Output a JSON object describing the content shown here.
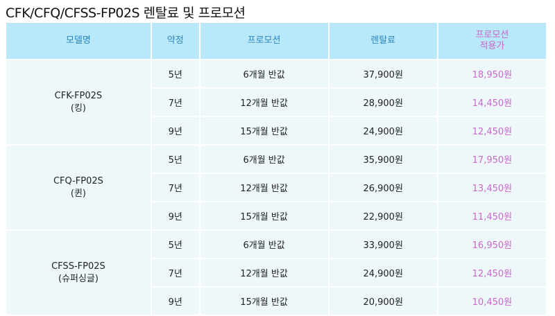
{
  "title": "CFK/CFQ/CFSS-FP02S 렌탈료 및 프로모션",
  "headers": {
    "model": "모델명",
    "contract": "약정",
    "promotion": "프로모션",
    "rental": "렌탈료",
    "promo_price_1": "프로모션",
    "promo_price_2": "적용가"
  },
  "colors": {
    "header_bg": "#b9e8fb",
    "header_text": "#2a86c0",
    "promo_text": "#cc66cc",
    "body_bg": "#eef8fb"
  },
  "groups": [
    {
      "model": "CFK-FP02S",
      "sub": "(킹)",
      "rows": [
        {
          "contract": "5년",
          "promotion": "6개월 반값",
          "rental": "37,900원",
          "promo_price": "18,950원"
        },
        {
          "contract": "7년",
          "promotion": "12개월 반값",
          "rental": "28,900원",
          "promo_price": "14,450원"
        },
        {
          "contract": "9년",
          "promotion": "15개월 반값",
          "rental": "24,900원",
          "promo_price": "12,450원"
        }
      ]
    },
    {
      "model": "CFQ-FP02S",
      "sub": "(퀸)",
      "rows": [
        {
          "contract": "5년",
          "promotion": "6개월 반값",
          "rental": "35,900원",
          "promo_price": "17,950원"
        },
        {
          "contract": "7년",
          "promotion": "12개월 반값",
          "rental": "26,900원",
          "promo_price": "13,450원"
        },
        {
          "contract": "9년",
          "promotion": "15개월 반값",
          "rental": "22,900원",
          "promo_price": "11,450원"
        }
      ]
    },
    {
      "model": "CFSS-FP02S",
      "sub": "(슈퍼싱글)",
      "rows": [
        {
          "contract": "5년",
          "promotion": "6개월 반값",
          "rental": "33,900원",
          "promo_price": "16,950원"
        },
        {
          "contract": "7년",
          "promotion": "12개월 반값",
          "rental": "24,900원",
          "promo_price": "12,450원"
        },
        {
          "contract": "9년",
          "promotion": "15개월 반값",
          "rental": "20,900원",
          "promo_price": "10,450원"
        }
      ]
    }
  ]
}
